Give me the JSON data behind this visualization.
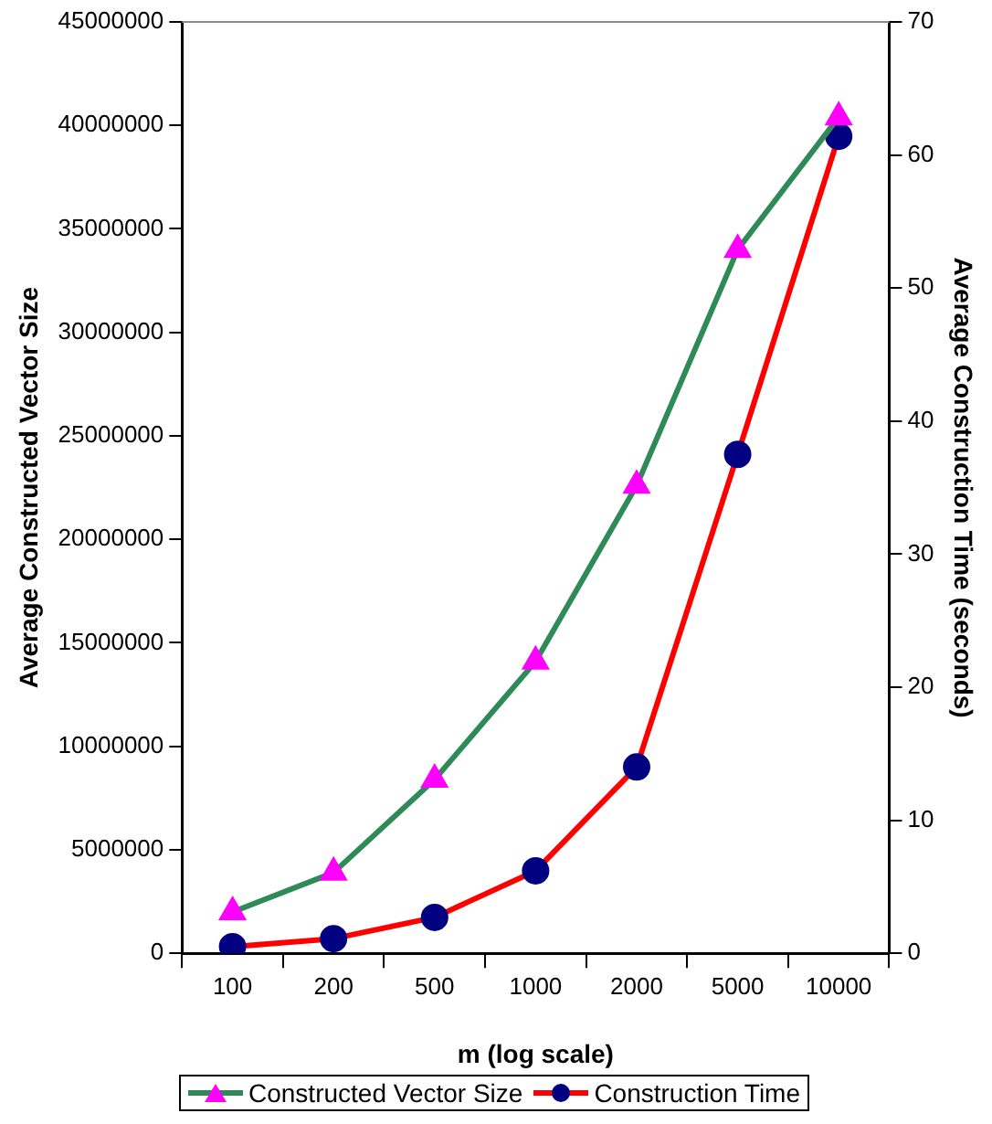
{
  "chart_data": {
    "type": "line",
    "xlabel": "m (log scale)",
    "ylabel": "Average Constructed Vector Size",
    "y2label": "Average Construction Time (seconds)",
    "categories": [
      "100",
      "200",
      "500",
      "1000",
      "2000",
      "5000",
      "10000"
    ],
    "series": [
      {
        "name": "Constructed Vector Size",
        "color": "#2e8b57",
        "colors": [
          "#ff00ff",
          "#ff00ff",
          "#ff00ff",
          "#ff00ff",
          "#ff00ff",
          "#ff00ff",
          "#ff00ff"
        ],
        "marker": "triangle",
        "values": [
          2000000,
          3900000,
          8400000,
          14100000,
          22600000,
          34000000,
          40400000
        ]
      },
      {
        "name": "Construction Time",
        "color": "#ff0000",
        "colors": [
          "#000080",
          "#000080",
          "#000080",
          "#000080",
          "#000080",
          "#000080",
          "#000080"
        ],
        "marker": "circle",
        "axis": "y2",
        "values": [
          0.5,
          1.1,
          2.7,
          6.2,
          14.0,
          37.5,
          61.4
        ]
      }
    ],
    "ylim": [
      0,
      45000000
    ],
    "yticks": [
      0,
      5000000,
      10000000,
      15000000,
      20000000,
      25000000,
      30000000,
      35000000,
      40000000,
      45000000
    ],
    "y2lim": [
      0,
      70
    ],
    "y2ticks": [
      0,
      10,
      20,
      30,
      40,
      50,
      60,
      70
    ],
    "grid": false,
    "legend": "bottom"
  }
}
